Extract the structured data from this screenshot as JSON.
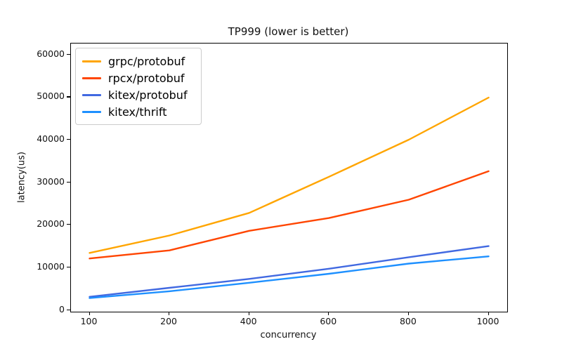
{
  "window": {
    "background": "#ffffff",
    "spine_color": "#000000",
    "text_color": "#111111"
  },
  "chart_data": {
    "type": "line",
    "title": "TP999 (lower is better)",
    "xlabel": "concurrency",
    "ylabel": "latency(us)",
    "categories": [
      "100",
      "200",
      "400",
      "600",
      "800",
      "1000"
    ],
    "x_scale": "categorical-evenly-spaced",
    "yticks": [
      0,
      10000,
      20000,
      30000,
      40000,
      50000,
      60000
    ],
    "ytick_labels": [
      "0",
      "10000",
      "20000",
      "30000",
      "40000",
      "50000",
      "60000"
    ],
    "ylim": [
      -400,
      62600
    ],
    "grid": false,
    "legend_position": "upper-left",
    "series": [
      {
        "name": "grpc/protobuf",
        "color": "#FFA500",
        "values": [
          13400,
          17500,
          22800,
          31300,
          40000,
          49900
        ]
      },
      {
        "name": "rpcx/protobuf",
        "color": "#FF4500",
        "values": [
          12100,
          14000,
          18600,
          21600,
          25900,
          32600
        ]
      },
      {
        "name": "kitex/protobuf",
        "color": "#4169E1",
        "values": [
          3100,
          5200,
          7300,
          9700,
          12400,
          15000
        ]
      },
      {
        "name": "kitex/thrift",
        "color": "#1E90FF",
        "values": [
          2800,
          4400,
          6400,
          8500,
          10900,
          12600
        ]
      }
    ]
  }
}
